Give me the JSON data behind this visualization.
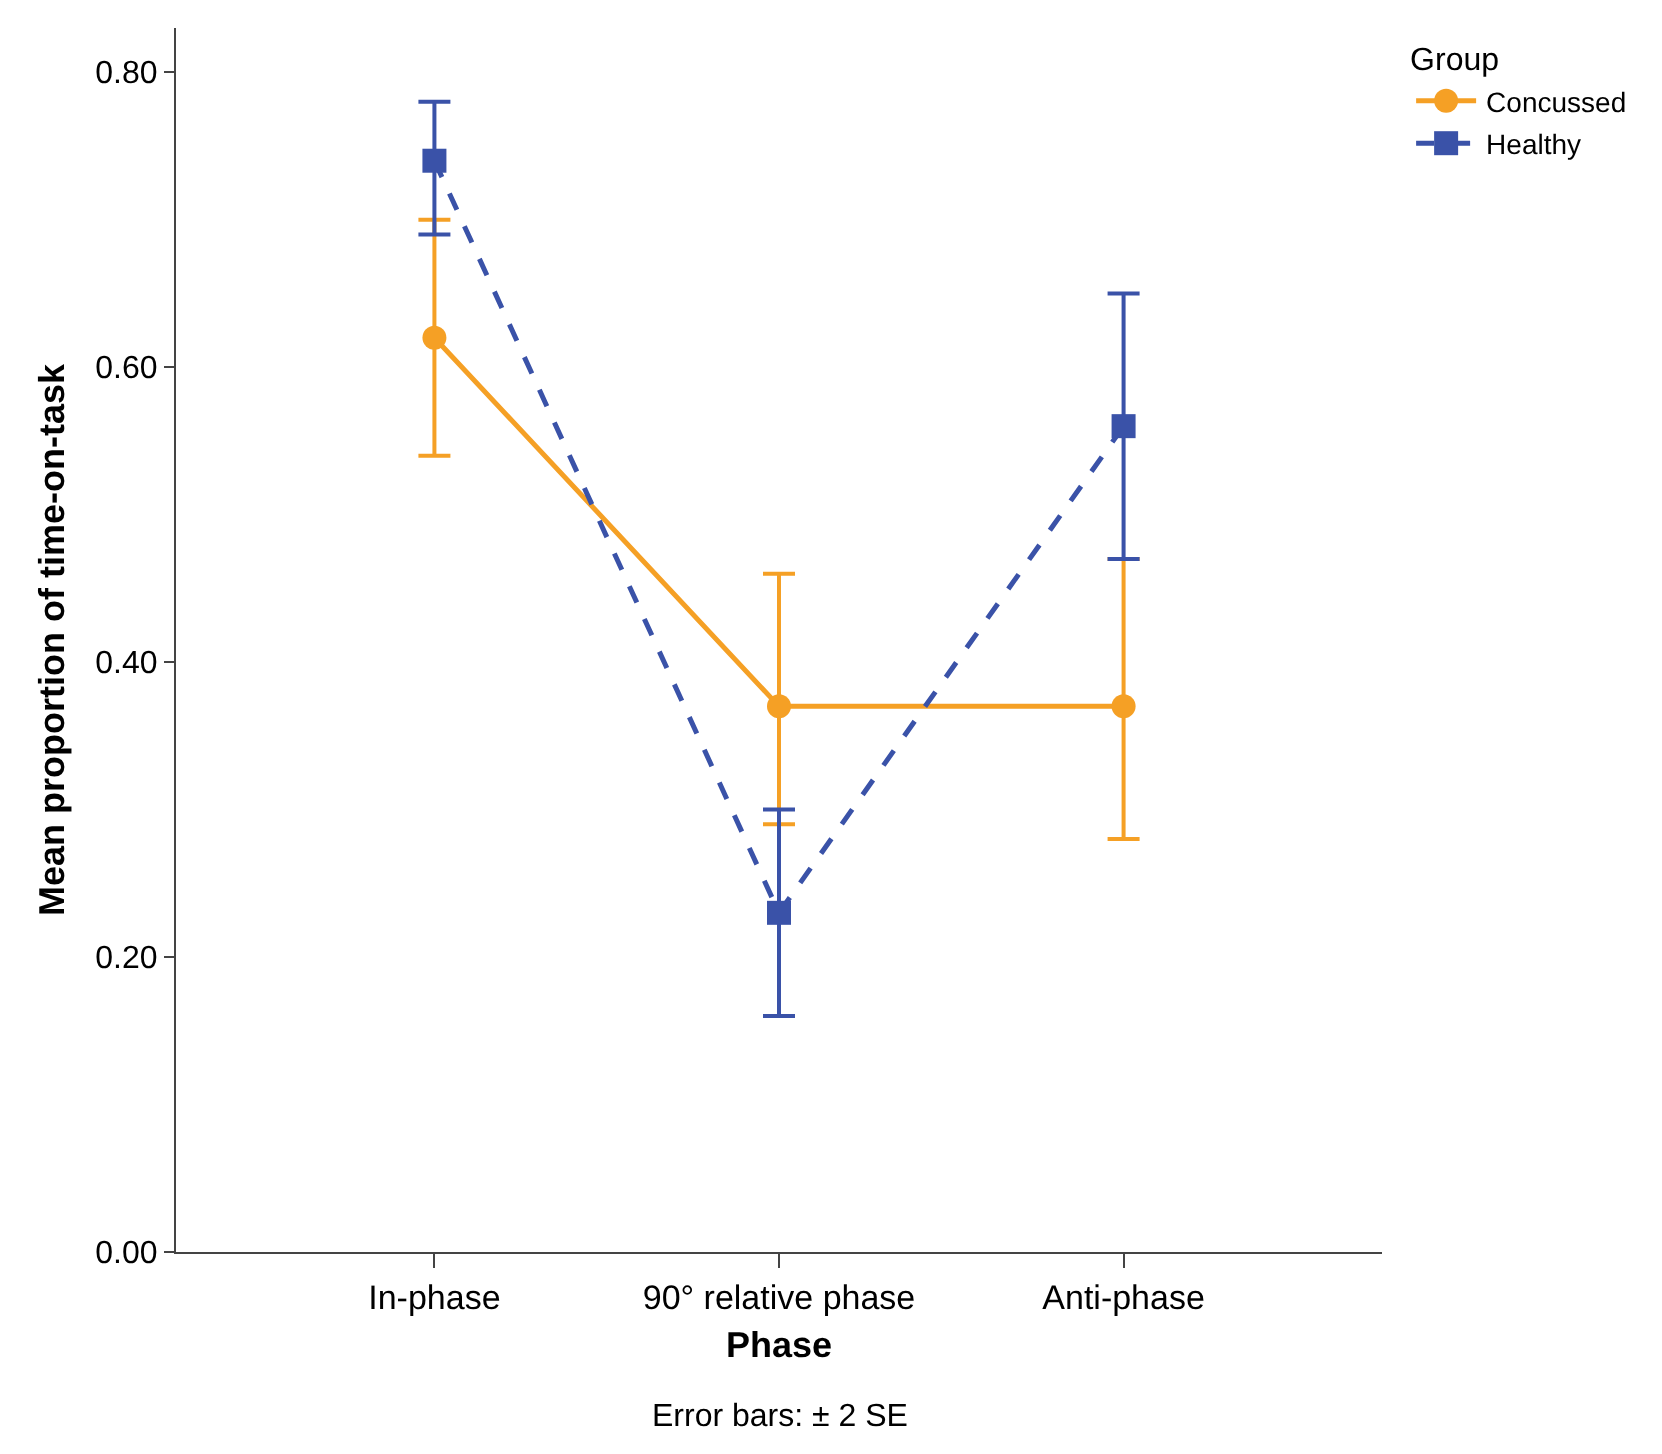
{
  "chart_data": {
    "type": "line",
    "xlabel": "Phase",
    "ylabel": "Mean proportion of time-on-task",
    "legend_title": "Group",
    "legend": "top right",
    "grid": false,
    "categories": [
      "In-phase",
      "90° relative phase",
      "Anti-phase"
    ],
    "ylim": [
      0,
      0.83
    ],
    "yticks": [
      {
        "value": 0,
        "label": "0.00"
      },
      {
        "value": 0.2,
        "label": "0.20"
      },
      {
        "value": 0.4,
        "label": "0.40"
      },
      {
        "value": 0.6,
        "label": "0.60"
      },
      {
        "value": 0.8,
        "label": "0.80"
      }
    ],
    "series": [
      {
        "name": "Concussed",
        "color": "#f5a025",
        "marker": "circle",
        "line_style": "solid",
        "values": [
          0.62,
          0.37,
          0.37
        ],
        "errors": [
          [
            0.54,
            0.7
          ],
          [
            0.29,
            0.46
          ],
          [
            0.28,
            0.47
          ]
        ]
      },
      {
        "name": "Healthy",
        "color": "#3a52a8",
        "marker": "square",
        "line_style": "dashed",
        "values": [
          0.74,
          0.23,
          0.56
        ],
        "errors": [
          [
            0.69,
            0.78
          ],
          [
            0.16,
            0.3
          ],
          [
            0.47,
            0.65
          ]
        ]
      }
    ],
    "annotations": [
      "Error bars: ± 2 SE"
    ]
  }
}
